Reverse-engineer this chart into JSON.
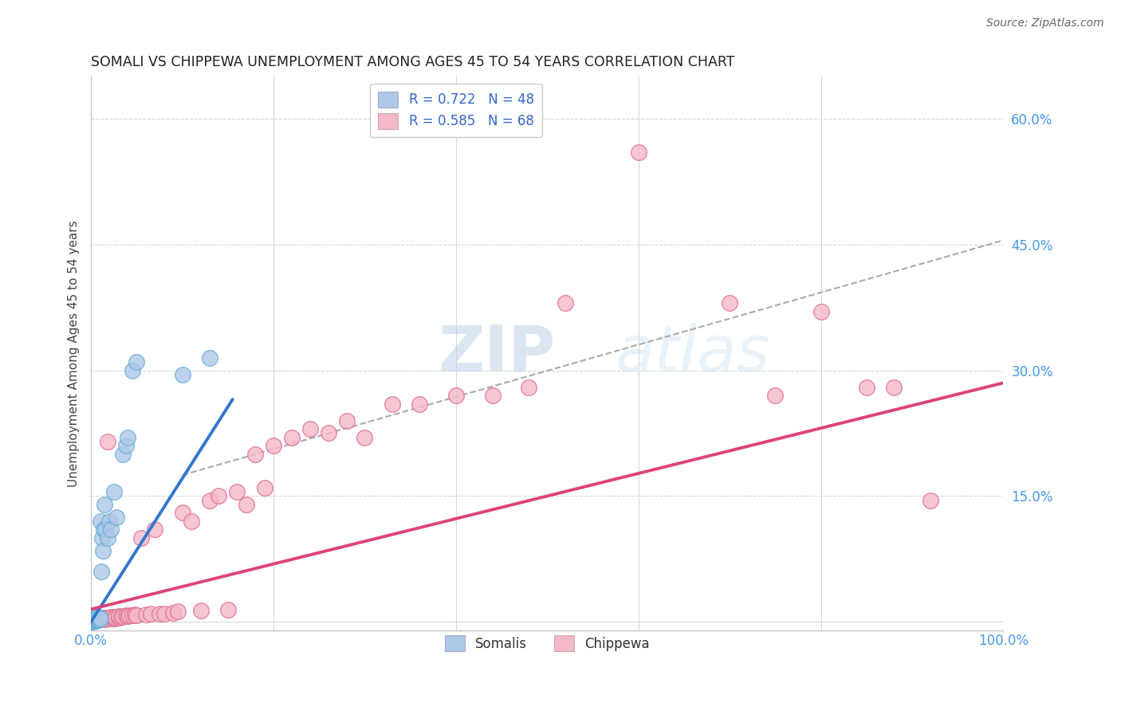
{
  "title": "SOMALI VS CHIPPEWA UNEMPLOYMENT AMONG AGES 45 TO 54 YEARS CORRELATION CHART",
  "source": "Source: ZipAtlas.com",
  "ylabel": "Unemployment Among Ages 45 to 54 years",
  "xlim": [
    0,
    1.0
  ],
  "ylim": [
    -0.01,
    0.65
  ],
  "xticks": [
    0.0,
    0.2,
    0.4,
    0.6,
    0.8,
    1.0
  ],
  "xticklabels": [
    "0.0%",
    "",
    "",
    "",
    "",
    "100.0%"
  ],
  "ytick_positions": [
    0.0,
    0.15,
    0.3,
    0.45,
    0.6
  ],
  "yticklabels": [
    "",
    "15.0%",
    "30.0%",
    "45.0%",
    "60.0%"
  ],
  "somali_R": 0.722,
  "somali_N": 48,
  "chippewa_R": 0.585,
  "chippewa_N": 68,
  "somali_color": "#adc8e8",
  "somali_edge": "#6aaed6",
  "chippewa_color": "#f4b8c8",
  "chippewa_edge": "#e07090",
  "trend_somali_color": "#3377cc",
  "trend_chippewa_color": "#dd4477",
  "background_color": "#ffffff",
  "grid_color": "#d8d8d8",
  "watermark": "ZIPatlas",
  "legend_somali_label": "Somalis",
  "legend_chippewa_label": "Chippewa",
  "somali_x": [
    0.001,
    0.002,
    0.002,
    0.003,
    0.003,
    0.003,
    0.004,
    0.004,
    0.004,
    0.004,
    0.005,
    0.005,
    0.005,
    0.005,
    0.005,
    0.006,
    0.006,
    0.006,
    0.006,
    0.007,
    0.007,
    0.007,
    0.007,
    0.008,
    0.008,
    0.008,
    0.009,
    0.009,
    0.01,
    0.01,
    0.011,
    0.012,
    0.013,
    0.014,
    0.015,
    0.016,
    0.018,
    0.02,
    0.022,
    0.025,
    0.028,
    0.035,
    0.038,
    0.04,
    0.045,
    0.05,
    0.1,
    0.13
  ],
  "somali_y": [
    0.0,
    0.001,
    0.002,
    0.001,
    0.002,
    0.003,
    0.001,
    0.002,
    0.003,
    0.004,
    0.001,
    0.002,
    0.003,
    0.004,
    0.005,
    0.002,
    0.003,
    0.004,
    0.005,
    0.002,
    0.003,
    0.004,
    0.006,
    0.003,
    0.004,
    0.006,
    0.003,
    0.005,
    0.004,
    0.12,
    0.06,
    0.1,
    0.085,
    0.11,
    0.14,
    0.11,
    0.1,
    0.12,
    0.11,
    0.155,
    0.125,
    0.2,
    0.21,
    0.22,
    0.3,
    0.31,
    0.295,
    0.315
  ],
  "chippewa_x": [
    0.002,
    0.003,
    0.004,
    0.005,
    0.005,
    0.006,
    0.007,
    0.008,
    0.009,
    0.01,
    0.012,
    0.013,
    0.015,
    0.015,
    0.017,
    0.018,
    0.02,
    0.022,
    0.025,
    0.025,
    0.027,
    0.03,
    0.03,
    0.033,
    0.035,
    0.038,
    0.04,
    0.042,
    0.045,
    0.048,
    0.05,
    0.055,
    0.06,
    0.065,
    0.07,
    0.075,
    0.08,
    0.09,
    0.095,
    0.1,
    0.11,
    0.12,
    0.13,
    0.14,
    0.15,
    0.16,
    0.17,
    0.18,
    0.19,
    0.2,
    0.22,
    0.24,
    0.26,
    0.28,
    0.3,
    0.33,
    0.36,
    0.4,
    0.44,
    0.48,
    0.52,
    0.6,
    0.7,
    0.75,
    0.8,
    0.85,
    0.88,
    0.92
  ],
  "chippewa_y": [
    0.001,
    0.002,
    0.002,
    0.002,
    0.003,
    0.003,
    0.003,
    0.003,
    0.004,
    0.005,
    0.004,
    0.004,
    0.003,
    0.005,
    0.005,
    0.215,
    0.004,
    0.006,
    0.004,
    0.006,
    0.005,
    0.005,
    0.007,
    0.006,
    0.007,
    0.008,
    0.007,
    0.008,
    0.008,
    0.009,
    0.008,
    0.1,
    0.009,
    0.01,
    0.11,
    0.01,
    0.01,
    0.011,
    0.012,
    0.13,
    0.12,
    0.013,
    0.145,
    0.15,
    0.014,
    0.155,
    0.14,
    0.2,
    0.16,
    0.21,
    0.22,
    0.23,
    0.225,
    0.24,
    0.22,
    0.26,
    0.26,
    0.27,
    0.27,
    0.28,
    0.38,
    0.56,
    0.38,
    0.27,
    0.37,
    0.28,
    0.28,
    0.145
  ],
  "blue_trend_x": [
    0.0,
    0.155
  ],
  "blue_trend_y": [
    0.0,
    0.265
  ],
  "pink_trend_x": [
    0.0,
    1.0
  ],
  "pink_trend_y": [
    0.015,
    0.285
  ],
  "dash_trend_x": [
    0.1,
    1.0
  ],
  "dash_trend_y": [
    0.175,
    0.455
  ]
}
